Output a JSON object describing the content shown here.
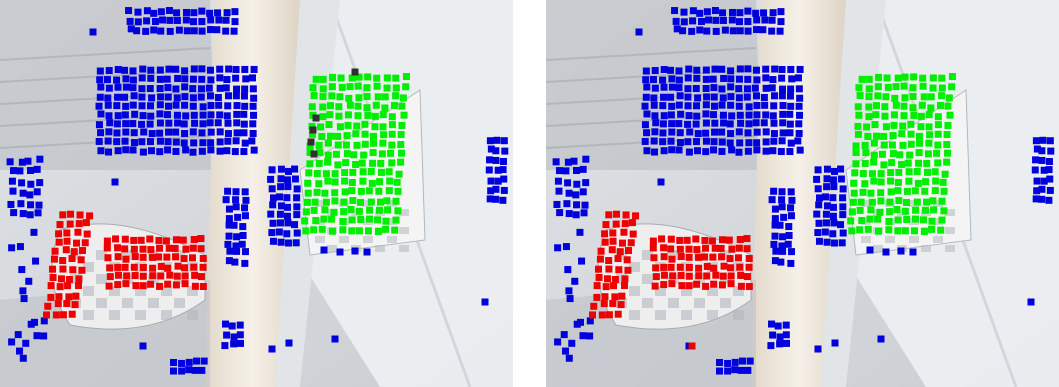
{
  "figure": {
    "panels": [
      {
        "id": "left",
        "description_hidden": true
      },
      {
        "id": "right",
        "description_hidden": true
      }
    ],
    "colors": {
      "background_bright": "#eef0f2",
      "background_mid": "#c8cdd2",
      "background_dark": "#8f949a",
      "cream": "#e9dfcf",
      "blue": "#0000dd",
      "green": "#00ee00",
      "red": "#ee0000",
      "dark_gray": "#303030"
    }
  }
}
